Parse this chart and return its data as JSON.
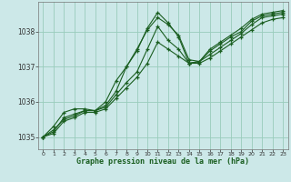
{
  "title": "Graphe pression niveau de la mer (hPa)",
  "background_color": "#cce8e8",
  "grid_color": "#99ccbb",
  "line_color": "#1a5e20",
  "marker": "+",
  "xlim": [
    -0.5,
    23.5
  ],
  "ylim": [
    1034.65,
    1038.85
  ],
  "yticks": [
    1035,
    1036,
    1037,
    1038
  ],
  "xticks": [
    0,
    1,
    2,
    3,
    4,
    5,
    6,
    7,
    8,
    9,
    10,
    11,
    12,
    13,
    14,
    15,
    16,
    17,
    18,
    19,
    20,
    21,
    22,
    23
  ],
  "series": [
    [
      1035.0,
      1035.2,
      1035.5,
      1035.6,
      1035.75,
      1035.75,
      1035.9,
      1036.3,
      1037.0,
      1037.45,
      1038.1,
      1038.55,
      1038.25,
      1037.85,
      1037.1,
      1037.15,
      1037.45,
      1037.65,
      1037.85,
      1038.0,
      1038.3,
      1038.45,
      1038.5,
      1038.55
    ],
    [
      1035.0,
      1035.15,
      1035.55,
      1035.65,
      1035.75,
      1035.75,
      1035.85,
      1036.2,
      1036.55,
      1036.85,
      1037.5,
      1038.15,
      1037.75,
      1037.5,
      1037.1,
      1037.15,
      1037.35,
      1037.55,
      1037.75,
      1037.95,
      1038.2,
      1038.4,
      1038.45,
      1038.5
    ],
    [
      1035.0,
      1035.1,
      1035.45,
      1035.55,
      1035.7,
      1035.7,
      1035.8,
      1036.1,
      1036.4,
      1036.7,
      1037.1,
      1037.7,
      1037.5,
      1037.3,
      1037.1,
      1037.1,
      1037.25,
      1037.45,
      1037.65,
      1037.85,
      1038.05,
      1038.25,
      1038.35,
      1038.4
    ],
    [
      1035.0,
      1035.3,
      1035.7,
      1035.8,
      1035.8,
      1035.75,
      1036.0,
      1036.6,
      1037.0,
      1037.5,
      1038.05,
      1038.4,
      1038.2,
      1037.9,
      1037.2,
      1037.15,
      1037.5,
      1037.7,
      1037.9,
      1038.1,
      1038.35,
      1038.5,
      1038.55,
      1038.6
    ]
  ]
}
